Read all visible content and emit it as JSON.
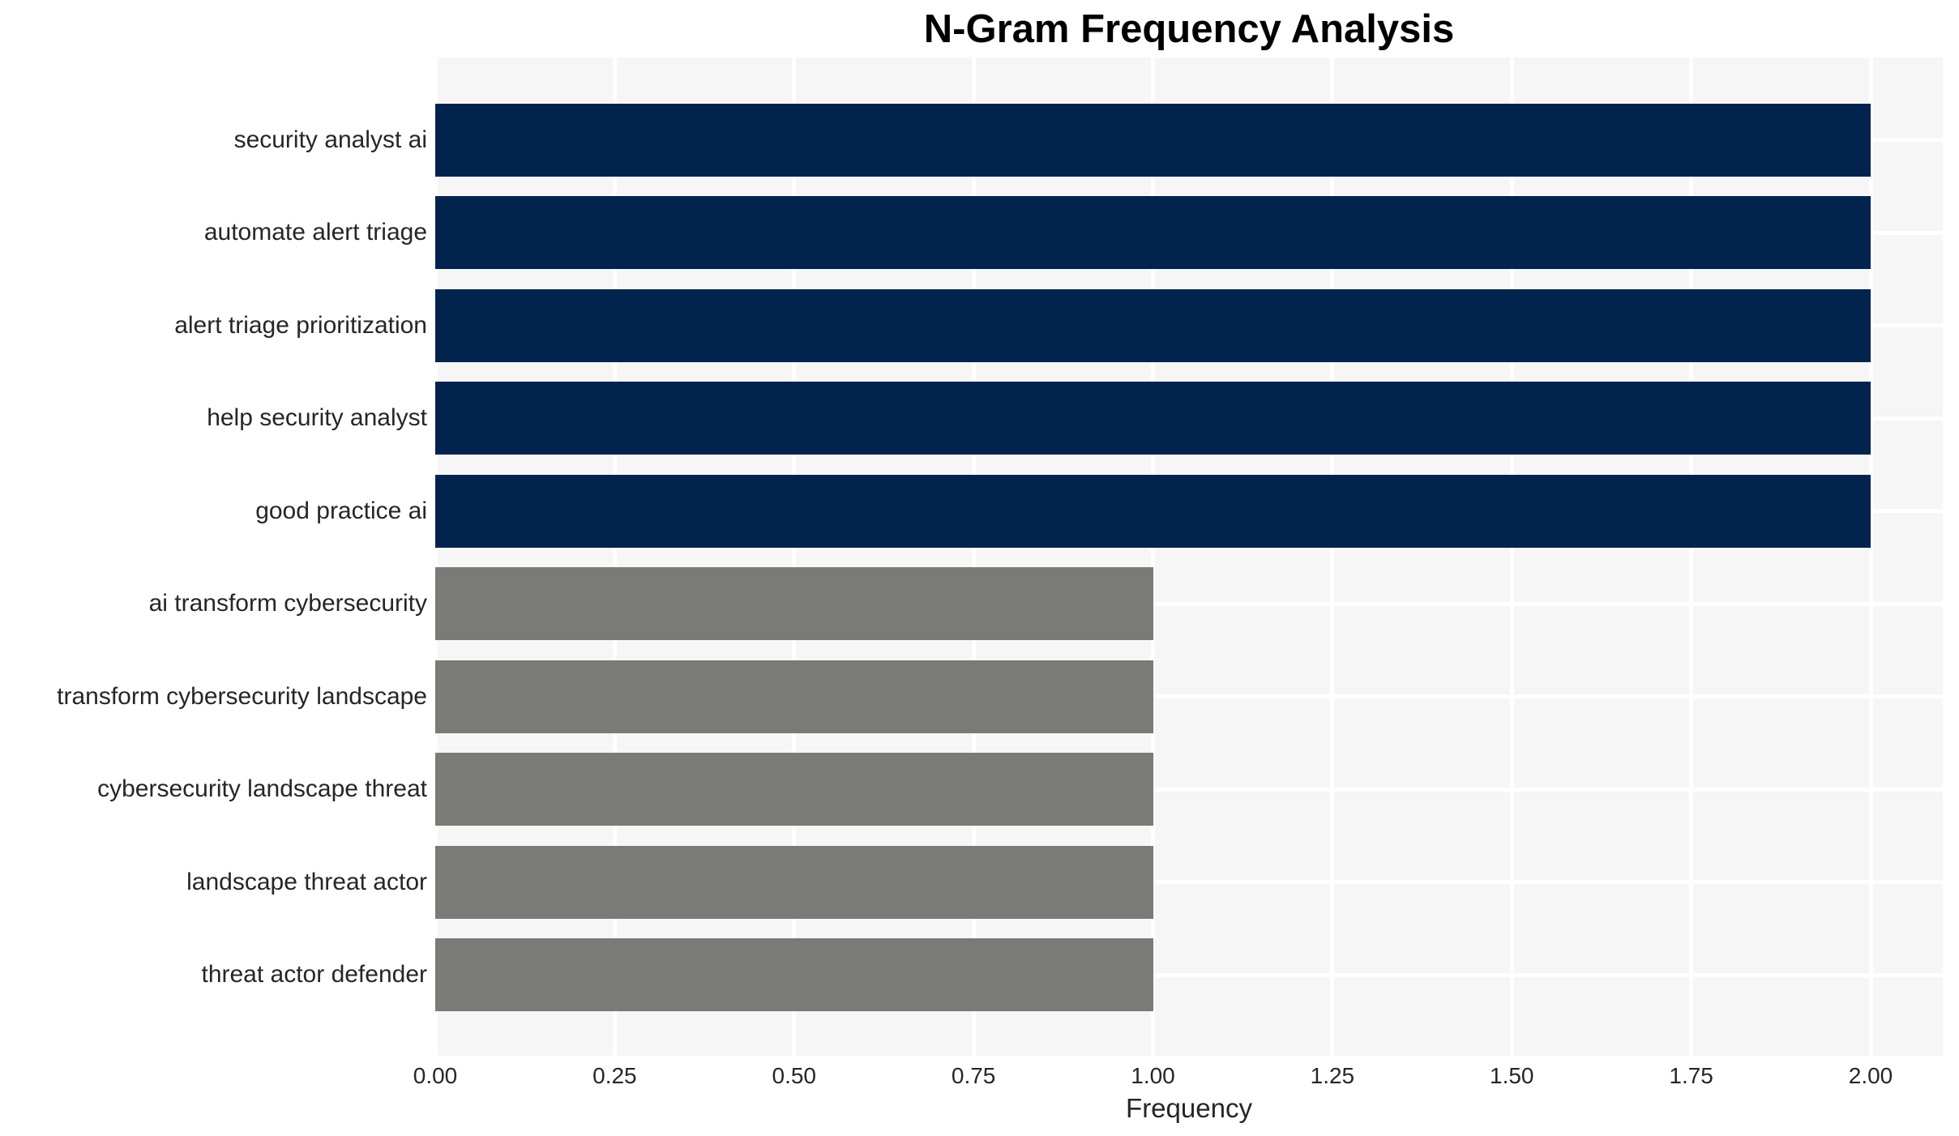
{
  "title": "N-Gram Frequency Analysis",
  "chart_data": {
    "type": "bar",
    "orientation": "horizontal",
    "title": "N-Gram Frequency Analysis",
    "xlabel": "Frequency",
    "ylabel": "",
    "categories": [
      "security analyst ai",
      "automate alert triage",
      "alert triage prioritization",
      "help security analyst",
      "good practice ai",
      "ai transform cybersecurity",
      "transform cybersecurity landscape",
      "cybersecurity landscape threat",
      "landscape threat actor",
      "threat actor defender"
    ],
    "values": [
      2,
      2,
      2,
      2,
      2,
      1,
      1,
      1,
      1,
      1
    ],
    "bar_colors": [
      "#02234d",
      "#02234d",
      "#02234d",
      "#02234d",
      "#02234d",
      "#7a7a77",
      "#7a7a77",
      "#7a7a77",
      "#7a7a77",
      "#7a7a77"
    ],
    "xlim": [
      0,
      2.1
    ],
    "xticks": [
      0,
      0.25,
      0.5,
      0.75,
      1.0,
      1.25,
      1.5,
      1.75,
      2.0
    ],
    "xtick_labels": [
      "0.00",
      "0.25",
      "0.50",
      "0.75",
      "1.00",
      "1.25",
      "1.50",
      "1.75",
      "2.00"
    ],
    "grid": true,
    "legend": false,
    "plot_bg_color": "#f6f6f7",
    "grid_color": "#ffffff",
    "text_color": "#262626",
    "title_color": "#000000"
  }
}
